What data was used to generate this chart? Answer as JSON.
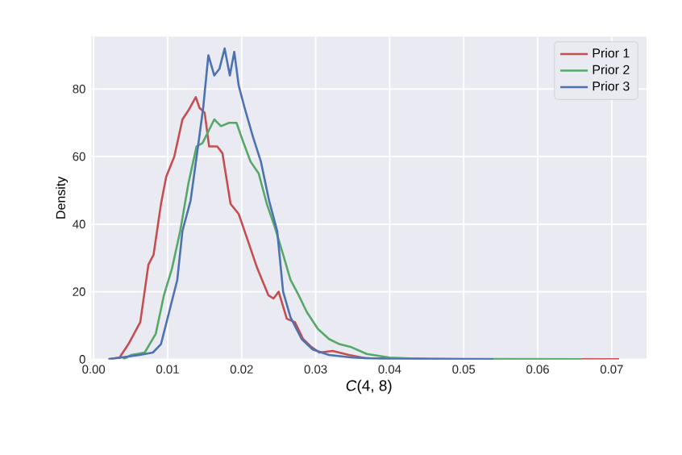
{
  "chart_data": {
    "type": "line",
    "xlabel": "*C*(4, 8)",
    "ylabel": "Density",
    "xlim": [
      -0.0003,
      0.0747
    ],
    "ylim": [
      0,
      95.5
    ],
    "xticks": [
      {
        "value": 0,
        "label": "0.00"
      },
      {
        "value": 0.01,
        "label": "0.01"
      },
      {
        "value": 0.02,
        "label": "0.02"
      },
      {
        "value": 0.03,
        "label": "0.03"
      },
      {
        "value": 0.04,
        "label": "0.04"
      },
      {
        "value": 0.05,
        "label": "0.05"
      },
      {
        "value": 0.06,
        "label": "0.06"
      },
      {
        "value": 0.07,
        "label": "0.07"
      }
    ],
    "yticks": [
      0,
      20,
      40,
      60,
      80
    ],
    "grid": true,
    "legend": "top right",
    "series": [
      {
        "name": "Prior 1",
        "color": "#c44e52",
        "x": [
          0.002,
          0.0035,
          0.0047,
          0.0063,
          0.0074,
          0.0081,
          0.0091,
          0.0098,
          0.0109,
          0.012,
          0.0129,
          0.0138,
          0.0143,
          0.015,
          0.0156,
          0.0167,
          0.0174,
          0.0185,
          0.0196,
          0.0207,
          0.0221,
          0.0236,
          0.0243,
          0.025,
          0.0261,
          0.0272,
          0.0283,
          0.0294,
          0.0305,
          0.0323,
          0.0345,
          0.0367,
          0.04,
          0.05,
          0.071
        ],
        "values": [
          0,
          0.5,
          4.5,
          11,
          28,
          31,
          46,
          54,
          60,
          71,
          74,
          77.6,
          74.4,
          73,
          63,
          63,
          61,
          46,
          43,
          36,
          27,
          19,
          18,
          20,
          12,
          11,
          6,
          3.7,
          2,
          2.5,
          1.3,
          0.3,
          0.2,
          0.1,
          0
        ]
      },
      {
        "name": "Prior 2",
        "color": "#55a868",
        "x": [
          0.004,
          0.0051,
          0.0069,
          0.0084,
          0.0095,
          0.0106,
          0.0117,
          0.0128,
          0.0139,
          0.0147,
          0.0154,
          0.0163,
          0.0172,
          0.0183,
          0.0193,
          0.0201,
          0.0212,
          0.0223,
          0.0234,
          0.0245,
          0.0256,
          0.0266,
          0.0277,
          0.0288,
          0.0303,
          0.0318,
          0.0332,
          0.0347,
          0.0369,
          0.04,
          0.045,
          0.066
        ],
        "values": [
          0,
          1.3,
          2,
          7.6,
          19,
          27,
          38,
          52,
          63,
          64,
          67,
          71,
          69,
          70,
          70,
          65,
          58.5,
          55,
          46,
          39,
          31,
          23.5,
          19,
          14,
          9,
          6,
          4.5,
          3.7,
          1.6,
          0.5,
          0.1,
          0
        ]
      },
      {
        "name": "Prior 3",
        "color": "#4c72b0",
        "x": [
          0.002,
          0.0062,
          0.008,
          0.0091,
          0.0102,
          0.0113,
          0.012,
          0.0131,
          0.0141,
          0.0148,
          0.0155,
          0.0163,
          0.017,
          0.0177,
          0.0184,
          0.019,
          0.0196,
          0.0204,
          0.0215,
          0.0226,
          0.0237,
          0.0248,
          0.0256,
          0.0266,
          0.0281,
          0.0296,
          0.0318,
          0.035,
          0.04,
          0.054
        ],
        "values": [
          0,
          1.3,
          2,
          4.5,
          14,
          23.5,
          38,
          47,
          63,
          74.4,
          90,
          84,
          86,
          92,
          84,
          91,
          81,
          74.4,
          66,
          58.5,
          47,
          38,
          20,
          12.4,
          6,
          2.9,
          1.3,
          0.5,
          0.1,
          0
        ]
      }
    ]
  }
}
